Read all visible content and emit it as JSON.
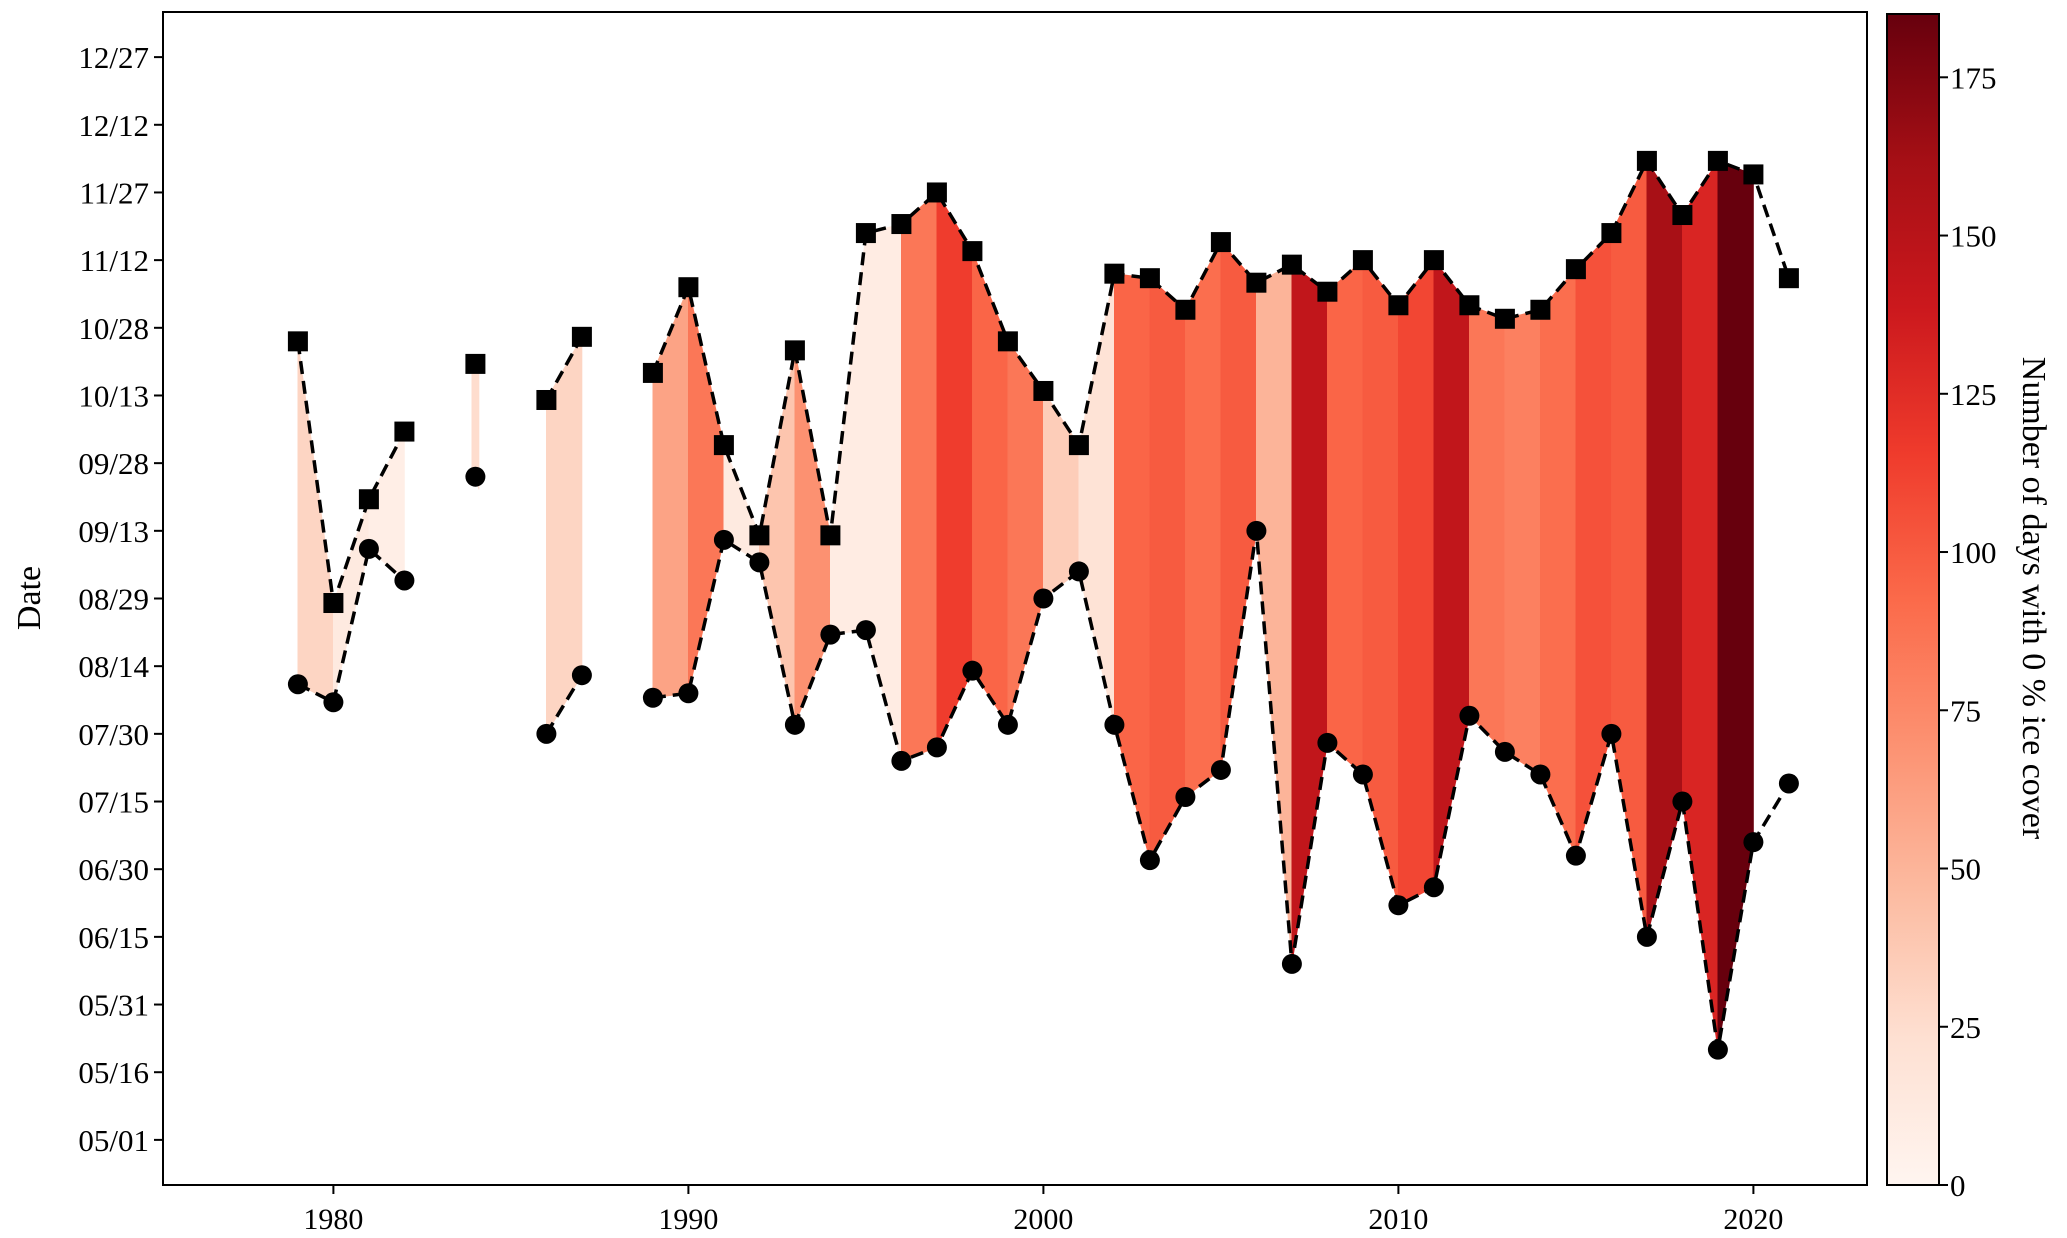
{
  "chart_data": {
    "type": "area",
    "xlabel": "",
    "ylabel": "Date",
    "colorbar_label": "Number of days with 0 % ice cover",
    "xlim": [
      1975.2,
      2023.2
    ],
    "ylim_day_of_year": [
      111,
      371
    ],
    "x_ticks": [
      1980,
      1990,
      2000,
      2010,
      2020
    ],
    "x_tick_labels": [
      "1980",
      "1990",
      "2000",
      "2010",
      "2020"
    ],
    "y_ticks_day_of_year": [
      121,
      136,
      151,
      166,
      181,
      196,
      211,
      226,
      241,
      256,
      271,
      286,
      301,
      316,
      331,
      346,
      361
    ],
    "y_tick_labels": [
      "05/01",
      "05/16",
      "05/31",
      "06/15",
      "06/30",
      "07/15",
      "07/30",
      "08/14",
      "08/29",
      "09/13",
      "09/28",
      "10/13",
      "10/28",
      "11/12",
      "11/27",
      "12/12",
      "12/27"
    ],
    "colorbar_range": [
      0,
      185
    ],
    "colorbar_ticks": [
      0,
      25,
      50,
      75,
      100,
      125,
      150,
      175
    ],
    "colormap": "Reds",
    "colormap_stops": [
      "#fff5f0",
      "#fee0d2",
      "#fcbba1",
      "#fc9272",
      "#fb6a4a",
      "#ef3b2c",
      "#cb181d",
      "#a50f15",
      "#67000d"
    ],
    "grid": false,
    "series": [
      {
        "marker": "circle",
        "values": [
          {
            "x": 1979,
            "y": 222
          },
          {
            "x": 1980,
            "y": 218
          },
          {
            "x": 1981,
            "y": 252
          },
          {
            "x": 1982,
            "y": 245
          },
          {
            "x": 1984,
            "y": 268
          },
          {
            "x": 1986,
            "y": 211
          },
          {
            "x": 1987,
            "y": 224
          },
          {
            "x": 1989,
            "y": 219
          },
          {
            "x": 1990,
            "y": 220
          },
          {
            "x": 1991,
            "y": 254
          },
          {
            "x": 1992,
            "y": 249
          },
          {
            "x": 1993,
            "y": 213
          },
          {
            "x": 1994,
            "y": 233
          },
          {
            "x": 1995,
            "y": 234
          },
          {
            "x": 1996,
            "y": 205
          },
          {
            "x": 1997,
            "y": 208
          },
          {
            "x": 1998,
            "y": 225
          },
          {
            "x": 1999,
            "y": 213
          },
          {
            "x": 2000,
            "y": 241
          },
          {
            "x": 2001,
            "y": 247
          },
          {
            "x": 2002,
            "y": 213
          },
          {
            "x": 2003,
            "y": 183
          },
          {
            "x": 2004,
            "y": 197
          },
          {
            "x": 2005,
            "y": 203
          },
          {
            "x": 2006,
            "y": 256
          },
          {
            "x": 2007,
            "y": 160
          },
          {
            "x": 2008,
            "y": 209
          },
          {
            "x": 2009,
            "y": 202
          },
          {
            "x": 2010,
            "y": 173
          },
          {
            "x": 2011,
            "y": 177
          },
          {
            "x": 2012,
            "y": 215
          },
          {
            "x": 2013,
            "y": 207
          },
          {
            "x": 2014,
            "y": 202
          },
          {
            "x": 2015,
            "y": 184
          },
          {
            "x": 2016,
            "y": 211
          },
          {
            "x": 2017,
            "y": 166
          },
          {
            "x": 2018,
            "y": 196
          },
          {
            "x": 2019,
            "y": 141
          },
          {
            "x": 2020,
            "y": 187
          },
          {
            "x": 2021,
            "y": 200
          }
        ]
      },
      {
        "marker": "square",
        "values": [
          {
            "x": 1979,
            "y": 298
          },
          {
            "x": 1980,
            "y": 240
          },
          {
            "x": 1981,
            "y": 263
          },
          {
            "x": 1982,
            "y": 278
          },
          {
            "x": 1984,
            "y": 293
          },
          {
            "x": 1986,
            "y": 285
          },
          {
            "x": 1987,
            "y": 299
          },
          {
            "x": 1989,
            "y": 291
          },
          {
            "x": 1990,
            "y": 310
          },
          {
            "x": 1991,
            "y": 275
          },
          {
            "x": 1992,
            "y": 255
          },
          {
            "x": 1993,
            "y": 296
          },
          {
            "x": 1994,
            "y": 255
          },
          {
            "x": 1995,
            "y": 322
          },
          {
            "x": 1996,
            "y": 324
          },
          {
            "x": 1997,
            "y": 331
          },
          {
            "x": 1998,
            "y": 318
          },
          {
            "x": 1999,
            "y": 298
          },
          {
            "x": 2000,
            "y": 287
          },
          {
            "x": 2001,
            "y": 275
          },
          {
            "x": 2002,
            "y": 313
          },
          {
            "x": 2003,
            "y": 312
          },
          {
            "x": 2004,
            "y": 305
          },
          {
            "x": 2005,
            "y": 320
          },
          {
            "x": 2006,
            "y": 311
          },
          {
            "x": 2007,
            "y": 315
          },
          {
            "x": 2008,
            "y": 309
          },
          {
            "x": 2009,
            "y": 316
          },
          {
            "x": 2010,
            "y": 306
          },
          {
            "x": 2011,
            "y": 316
          },
          {
            "x": 2012,
            "y": 306
          },
          {
            "x": 2013,
            "y": 303
          },
          {
            "x": 2014,
            "y": 305
          },
          {
            "x": 2015,
            "y": 314
          },
          {
            "x": 2016,
            "y": 322
          },
          {
            "x": 2017,
            "y": 338
          },
          {
            "x": 2018,
            "y": 326
          },
          {
            "x": 2019,
            "y": 338
          },
          {
            "x": 2020,
            "y": 335
          },
          {
            "x": 2021,
            "y": 312
          }
        ]
      }
    ],
    "shaded_segments": [
      {
        "x_start": 1979,
        "x_end": 1980,
        "days": 30
      },
      {
        "x_start": 1980,
        "x_end": 1981,
        "days": 12
      },
      {
        "x_start": 1981,
        "x_end": 1982,
        "days": 8
      },
      {
        "x_start": 1983.9,
        "x_end": 1984.1,
        "days": 25
      },
      {
        "x_start": 1986,
        "x_end": 1987,
        "days": 30
      },
      {
        "x_start": 1989,
        "x_end": 1990,
        "days": 60
      },
      {
        "x_start": 1990,
        "x_end": 1991,
        "days": 85
      },
      {
        "x_start": 1991,
        "x_end": 1992,
        "days": 12
      },
      {
        "x_start": 1992,
        "x_end": 1993,
        "days": 40
      },
      {
        "x_start": 1993,
        "x_end": 1994,
        "days": 70
      },
      {
        "x_start": 1994,
        "x_end": 1996,
        "days": 10
      },
      {
        "x_start": 1996,
        "x_end": 1997,
        "days": 85
      },
      {
        "x_start": 1997,
        "x_end": 1998,
        "days": 115
      },
      {
        "x_start": 1998,
        "x_end": 1999,
        "days": 95
      },
      {
        "x_start": 1999,
        "x_end": 2000,
        "days": 85
      },
      {
        "x_start": 2000,
        "x_end": 2001,
        "days": 35
      },
      {
        "x_start": 2001,
        "x_end": 2002,
        "days": 20
      },
      {
        "x_start": 2002,
        "x_end": 2003,
        "days": 95
      },
      {
        "x_start": 2003,
        "x_end": 2004,
        "days": 100
      },
      {
        "x_start": 2004,
        "x_end": 2005,
        "days": 90
      },
      {
        "x_start": 2005,
        "x_end": 2006,
        "days": 100
      },
      {
        "x_start": 2006,
        "x_end": 2007,
        "days": 50
      },
      {
        "x_start": 2007,
        "x_end": 2008,
        "days": 145
      },
      {
        "x_start": 2008,
        "x_end": 2009,
        "days": 95
      },
      {
        "x_start": 2009,
        "x_end": 2010,
        "days": 100
      },
      {
        "x_start": 2010,
        "x_end": 2011,
        "days": 110
      },
      {
        "x_start": 2011,
        "x_end": 2012,
        "days": 145
      },
      {
        "x_start": 2012,
        "x_end": 2013,
        "days": 85
      },
      {
        "x_start": 2013,
        "x_end": 2014,
        "days": 80
      },
      {
        "x_start": 2014,
        "x_end": 2015,
        "days": 90
      },
      {
        "x_start": 2015,
        "x_end": 2016,
        "days": 105
      },
      {
        "x_start": 2016,
        "x_end": 2017,
        "days": 100
      },
      {
        "x_start": 2017,
        "x_end": 2018,
        "days": 160
      },
      {
        "x_start": 2018,
        "x_end": 2019,
        "days": 130
      },
      {
        "x_start": 2019,
        "x_end": 2020,
        "days": 185
      }
    ]
  }
}
